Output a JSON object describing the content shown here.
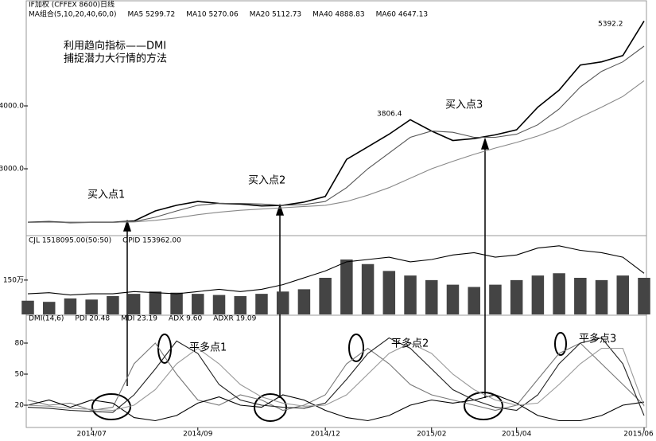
{
  "chart_data": [
    {
      "type": "line",
      "title": "IF加权  (CFFEX 8600)日线",
      "header": [
        "MA组合(5,10,20,40,60,0)",
        "MA5 5299.72",
        "MA10 5270.06",
        "MA20 5112.73",
        "MA40 4888.83",
        "MA60 4647.13"
      ],
      "annotations": [
        "利用趋向指标——DMI",
        "捕捉潜力大行情的方法",
        "买入点1",
        "买入点2",
        "买入点3",
        "3806.4",
        "5392.2"
      ],
      "ylim": [
        1950,
        5557
      ],
      "yticks": [
        {
          "value": 3000,
          "label": "3000.0"
        },
        {
          "value": 4000,
          "label": "4000.0"
        }
      ],
      "series": [
        {
          "color": "#000000",
          "values": [
            2150,
            2160,
            2145,
            2150,
            2150,
            2170,
            2330,
            2420,
            2480,
            2450,
            2440,
            2410,
            2420,
            2470,
            2560,
            3150,
            3350,
            3550,
            3780,
            3600,
            3450,
            3480,
            3540,
            3620,
            3980,
            4250,
            4650,
            4700,
            4800,
            5350
          ]
        },
        {
          "color": "#555555",
          "values": [
            2150,
            2155,
            2152,
            2150,
            2150,
            2160,
            2230,
            2330,
            2420,
            2450,
            2450,
            2440,
            2420,
            2430,
            2480,
            2700,
            3000,
            3250,
            3500,
            3600,
            3580,
            3500,
            3500,
            3550,
            3700,
            3950,
            4300,
            4550,
            4700,
            4950
          ]
        },
        {
          "color": "#888888",
          "values": [
            2150,
            2150,
            2150,
            2150,
            2150,
            2155,
            2180,
            2220,
            2270,
            2310,
            2340,
            2360,
            2380,
            2400,
            2420,
            2480,
            2580,
            2700,
            2850,
            3000,
            3120,
            3230,
            3330,
            3420,
            3520,
            3650,
            3820,
            3980,
            4150,
            4400
          ]
        }
      ]
    },
    {
      "type": "bar",
      "header": [
        "CJL  1518095.00(50:50)",
        "OPID  153962.00"
      ],
      "ylim": [
        0,
        3200000
      ],
      "yticks": [
        {
          "value": 1500000,
          "label": "150万"
        }
      ],
      "series": [
        {
          "type": "bar",
          "color": "#444444",
          "values": [
            600000,
            550000,
            700000,
            650000,
            800000,
            900000,
            1000000,
            950000,
            900000,
            850000,
            800000,
            900000,
            1000000,
            1100000,
            1600000,
            2400000,
            2200000,
            1900000,
            1700000,
            1500000,
            1300000,
            1200000,
            1300000,
            1500000,
            1700000,
            1800000,
            1600000,
            1500000,
            1700000,
            1600000
          ]
        },
        {
          "type": "line",
          "color": "#000000",
          "values": [
            900000,
            950000,
            850000,
            900000,
            900000,
            1000000,
            950000,
            900000,
            1000000,
            1100000,
            1000000,
            1100000,
            1300000,
            1600000,
            1900000,
            2300000,
            2400000,
            2500000,
            2300000,
            2400000,
            2600000,
            2700000,
            2500000,
            2600000,
            2900000,
            3000000,
            2800000,
            2700000,
            2500000,
            1800000
          ]
        }
      ]
    },
    {
      "type": "line",
      "header": [
        "DMI(14,6)",
        "PDI  20.48",
        "MDI  23.19",
        "ADX  9.60",
        "ADXR  19.09"
      ],
      "annotations": [
        "平多点1",
        "平多点2",
        "平多点3"
      ],
      "categories": [
        null,
        null,
        null,
        "2014/07",
        null,
        null,
        null,
        null,
        "2014/09",
        null,
        null,
        null,
        null,
        null,
        "2014/12",
        null,
        null,
        null,
        null,
        "2015/02",
        null,
        null,
        null,
        "2015/04",
        null,
        null,
        null,
        null,
        null,
        "2015/06"
      ],
      "ylim": [
        0,
        100
      ],
      "yticks": [
        20,
        50,
        80
      ],
      "series": [
        {
          "color": "#777777",
          "values": [
            25,
            20,
            22,
            15,
            18,
            60,
            80,
            50,
            25,
            20,
            30,
            25,
            15,
            20,
            30,
            60,
            75,
            60,
            40,
            30,
            25,
            20,
            15,
            20,
            45,
            70,
            80,
            60,
            40,
            20
          ]
        },
        {
          "color": "#000000",
          "values": [
            20,
            25,
            18,
            25,
            22,
            8,
            5,
            10,
            22,
            28,
            20,
            18,
            30,
            25,
            15,
            8,
            5,
            10,
            20,
            25,
            22,
            25,
            30,
            22,
            10,
            5,
            5,
            10,
            20,
            23
          ]
        },
        {
          "color": "#222222",
          "values": [
            18,
            17,
            15,
            14,
            13,
            30,
            55,
            82,
            70,
            40,
            25,
            20,
            18,
            17,
            22,
            45,
            70,
            85,
            75,
            55,
            35,
            25,
            18,
            15,
            30,
            60,
            80,
            85,
            60,
            10
          ]
        },
        {
          "color": "#999999",
          "values": [
            20,
            19,
            17,
            16,
            15,
            20,
            35,
            60,
            75,
            60,
            40,
            28,
            22,
            19,
            20,
            30,
            50,
            70,
            80,
            70,
            50,
            35,
            25,
            20,
            22,
            40,
            60,
            75,
            75,
            19
          ]
        }
      ]
    }
  ]
}
